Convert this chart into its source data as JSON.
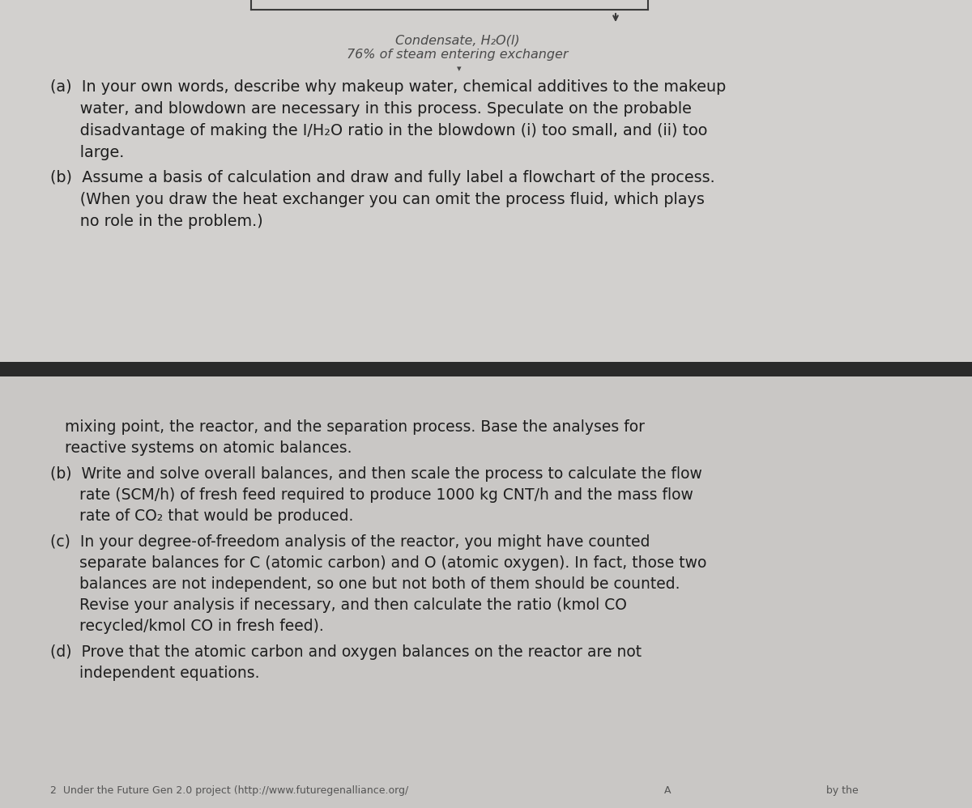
{
  "bg_color": "#d0cece",
  "bg_color_bottom": "#c8c6c6",
  "divider_color": "#2a2a2a",
  "text_color": "#1e1e1e",
  "header_line1": "Condensate, H₂O(l)",
  "header_line2": "76% of steam entering exchanger",
  "section_a_line1": "(a)  In your own words, describe why makeup water, chemical additives to the makeup",
  "section_a_line2": "      water, and blowdown are necessary in this process. Speculate on the probable",
  "section_a_line3": "      disadvantage of making the I/H₂O ratio in the blowdown (i) too small, and (ii) too",
  "section_a_line4": "      large.",
  "section_b_line1": "(b)  Assume a basis of calculation and draw and fully label a flowchart of the process.",
  "section_b_line2": "      (When you draw the heat exchanger you can omit the process fluid, which plays",
  "section_b_line3": "      no role in the problem.)",
  "bot_line1": "   mixing point, the reactor, and the separation process. Base the analyses for",
  "bot_line2": "   reactive systems on atomic balances.",
  "bot_b_line1": "(b)  Write and solve overall balances, and then scale the process to calculate the flow",
  "bot_b_line2": "      rate (SCM/h) of fresh feed required to produce 1000 kg CNT/h and the mass flow",
  "bot_b_line3": "      rate of CO₂ that would be produced.",
  "bot_c_line1": "(c)  In your degree-of-freedom analysis of the reactor, you might have counted",
  "bot_c_line2": "      separate balances for C (atomic carbon) and O (atomic oxygen). In fact, those two",
  "bot_c_line3": "      balances are not independent, so one but not both of them should be counted.",
  "bot_c_line4": "      Revise your analysis if necessary, and then calculate the ratio (kmol CO",
  "bot_c_line5": "      recycled/kmol CO in fresh feed).",
  "bot_d_line1": "(d)  Prove that the atomic carbon and oxygen balances on the reactor are not",
  "bot_d_line2": "      independent equations.",
  "footer": "2  Under the Future Gen 2.0 project (http://www.futuregenalliance.org/"
}
